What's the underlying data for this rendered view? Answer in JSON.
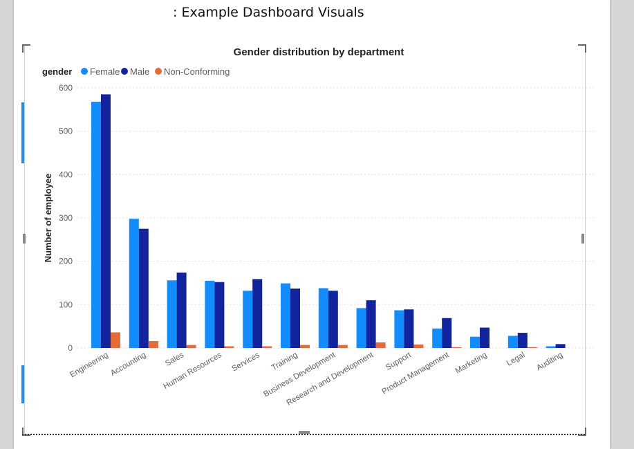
{
  "page": {
    "caption": ": Example Dashboard Visuals"
  },
  "chart_data": {
    "type": "bar",
    "title": "Gender distribution by department",
    "xlabel": "",
    "ylabel": "Number of employee",
    "ylim": [
      0,
      600
    ],
    "yticks": [
      0,
      100,
      200,
      300,
      400,
      500,
      600
    ],
    "grid": true,
    "legend": {
      "title": "gender",
      "placement": "top-left"
    },
    "categories": [
      "Engineering",
      "Accounting",
      "Sales",
      "Human Resources",
      "Services",
      "Training",
      "Business Development",
      "Research and Development",
      "Support",
      "Product Management",
      "Marketing",
      "Legal",
      "Auditing"
    ],
    "series": [
      {
        "name": "Female",
        "color": "#118dff",
        "values": [
          568,
          298,
          156,
          155,
          132,
          149,
          138,
          92,
          87,
          45,
          26,
          28,
          4
        ]
      },
      {
        "name": "Male",
        "color": "#12239e",
        "values": [
          585,
          275,
          174,
          152,
          159,
          137,
          132,
          110,
          89,
          69,
          47,
          35,
          9
        ]
      },
      {
        "name": "Non-Conforming",
        "color": "#e66c37",
        "values": [
          36,
          16,
          7,
          4,
          4,
          7,
          7,
          13,
          8,
          2,
          0,
          2,
          0
        ]
      }
    ]
  }
}
